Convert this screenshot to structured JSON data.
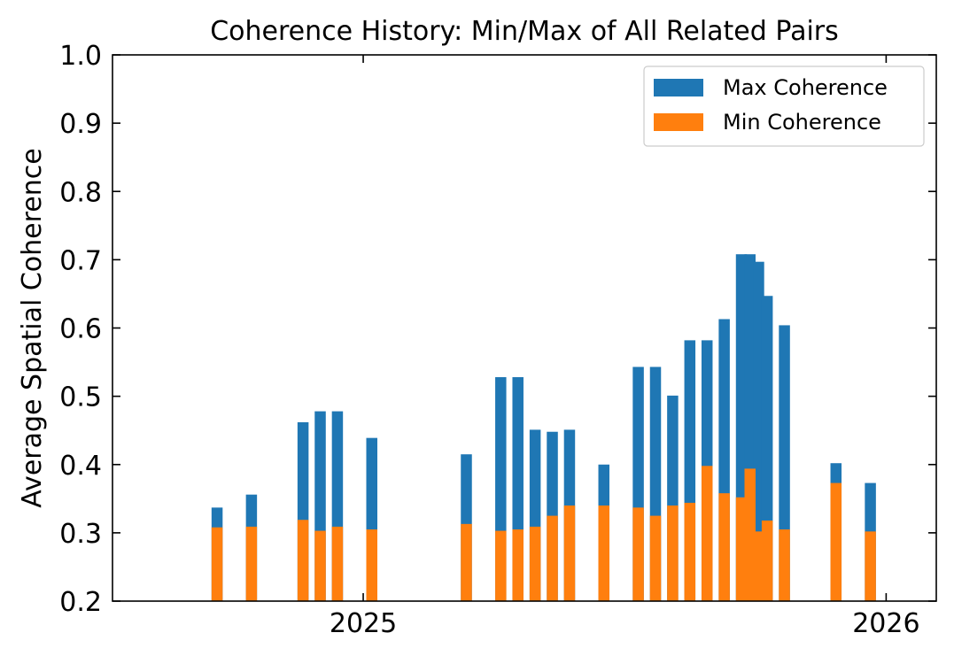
{
  "chart_data": {
    "type": "bar",
    "title": "Coherence History: Min/Max of All Related Pairs",
    "xlabel": "",
    "ylabel": "Average Spatial Coherence",
    "ylim": [
      0.2,
      1.0
    ],
    "xlim": [
      "2024-07-10",
      "2026-02-05"
    ],
    "yticks": [
      "0.2",
      "0.3",
      "0.4",
      "0.5",
      "0.6",
      "0.7",
      "0.8",
      "0.9",
      "1.0"
    ],
    "xticks": [
      {
        "date": "2025-01-01",
        "label": "2025"
      },
      {
        "date": "2026-01-01",
        "label": "2026"
      }
    ],
    "legend_position": "top-right",
    "grid": false,
    "series": [
      {
        "name": "Max Coherence",
        "color": "#1f77b4",
        "values": [
          0.337,
          0.356,
          0.462,
          0.478,
          0.478,
          0.439,
          0.415,
          0.528,
          0.528,
          0.451,
          0.448,
          0.451,
          0.4,
          0.543,
          0.543,
          0.501,
          0.582,
          0.582,
          0.613,
          0.708,
          0.708,
          0.697,
          0.647,
          0.604,
          0.402,
          0.373
        ]
      },
      {
        "name": "Min Coherence",
        "color": "#ff7f0e",
        "values": [
          0.308,
          0.309,
          0.319,
          0.303,
          0.309,
          0.305,
          0.313,
          0.303,
          0.305,
          0.309,
          0.325,
          0.34,
          0.34,
          0.337,
          0.325,
          0.34,
          0.344,
          0.398,
          0.358,
          0.352,
          0.394,
          0.302,
          0.318,
          0.305,
          0.373,
          0.302
        ]
      }
    ],
    "x": [
      "2024-09-21",
      "2024-10-15",
      "2024-11-20",
      "2024-12-02",
      "2024-12-14",
      "2025-01-07",
      "2025-03-14",
      "2025-04-07",
      "2025-04-19",
      "2025-05-01",
      "2025-05-13",
      "2025-05-25",
      "2025-06-18",
      "2025-07-12",
      "2025-07-24",
      "2025-08-05",
      "2025-08-17",
      "2025-08-29",
      "2025-09-10",
      "2025-09-22",
      "2025-09-28",
      "2025-10-04",
      "2025-10-10",
      "2025-10-22",
      "2025-11-27",
      "2025-12-21"
    ]
  }
}
